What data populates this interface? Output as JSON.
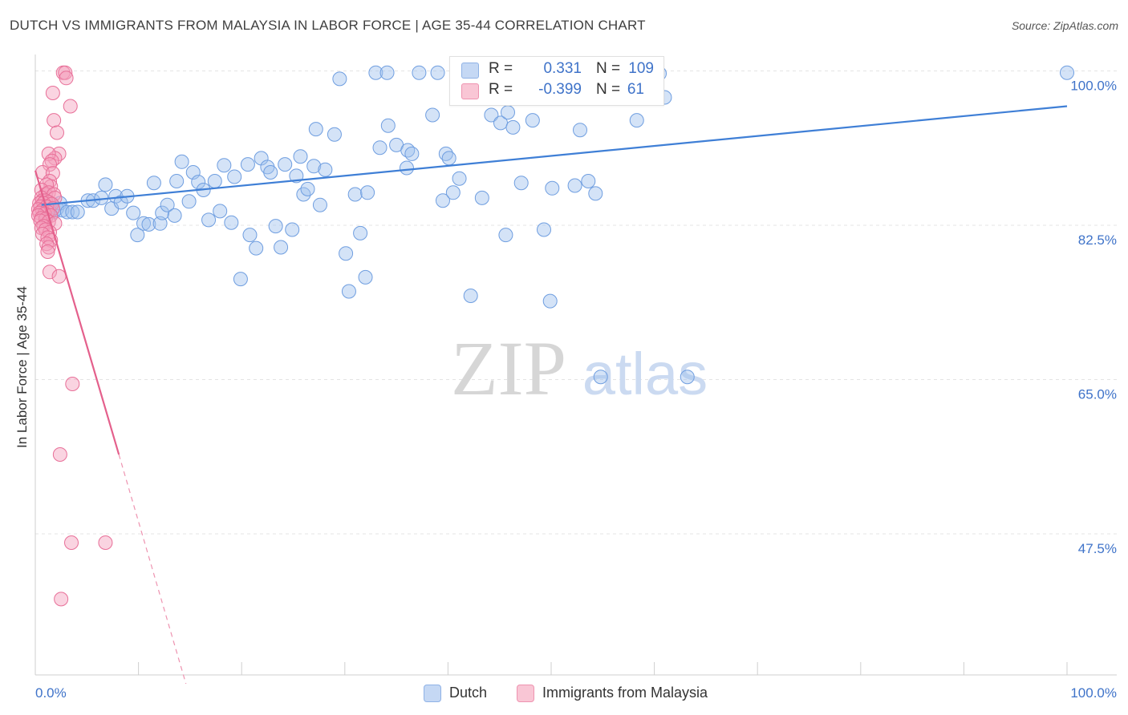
{
  "header": {
    "title": "DUTCH VS IMMIGRANTS FROM MALAYSIA IN LABOR FORCE | AGE 35-44 CORRELATION CHART",
    "source": "Source: ZipAtlas.com"
  },
  "stats": {
    "blue": {
      "r_label": "R =",
      "r_value": "0.331",
      "n_label": "N =",
      "n_value": "109"
    },
    "pink": {
      "r_label": "R =",
      "r_value": "-0.399",
      "n_label": "N =",
      "n_value": "61"
    }
  },
  "legend": {
    "blue": "Dutch",
    "pink": "Immigrants from Malaysia"
  },
  "watermark": {
    "zip": "ZIP",
    "atlas": "atlas"
  },
  "colors": {
    "blue": "#6f9ee0",
    "blue_fill": "#c5d8f4",
    "pink": "#e86f98",
    "pink_fill": "#f9c6d5",
    "value_text": "#3f73c9"
  },
  "chart_data": {
    "type": "scatter",
    "title": "DUTCH VS IMMIGRANTS FROM MALAYSIA IN LABOR FORCE | AGE 35-44 CORRELATION CHART",
    "xlabel": "",
    "ylabel": "In Labor Force | Age 35-44",
    "xlim": [
      0,
      100
    ],
    "ylim": [
      31.5,
      101.5
    ],
    "x_tick_labels": [
      "0.0%",
      "100.0%"
    ],
    "y_ticks": [
      100.0,
      82.5,
      65.0,
      47.5
    ],
    "y_tick_labels": [
      "100.0%",
      "82.5%",
      "65.0%",
      "47.5%"
    ],
    "grid": true,
    "legend_position": "bottom",
    "series": [
      {
        "name": "Dutch",
        "r": 0.331,
        "n": 109,
        "trend": {
          "x": [
            0.6,
            100
          ],
          "y": [
            84.8,
            96.0
          ]
        },
        "points": [
          [
            0.9,
            84.4
          ],
          [
            1.1,
            83.6
          ],
          [
            1.3,
            84.6
          ],
          [
            1.4,
            84.0
          ],
          [
            1.6,
            84.8
          ],
          [
            1.8,
            84.0
          ],
          [
            2.1,
            84.4
          ],
          [
            2.4,
            85.0
          ],
          [
            2.6,
            84.2
          ],
          [
            3.1,
            84.0
          ],
          [
            3.6,
            84.0
          ],
          [
            4.1,
            84.0
          ],
          [
            5.1,
            85.3
          ],
          [
            5.6,
            85.3
          ],
          [
            6.4,
            85.6
          ],
          [
            6.8,
            87.1
          ],
          [
            7.4,
            84.4
          ],
          [
            7.8,
            85.8
          ],
          [
            8.3,
            85.1
          ],
          [
            8.9,
            85.8
          ],
          [
            9.5,
            83.9
          ],
          [
            9.9,
            81.4
          ],
          [
            10.5,
            82.7
          ],
          [
            11.0,
            82.6
          ],
          [
            11.5,
            87.3
          ],
          [
            12.1,
            82.7
          ],
          [
            12.3,
            83.9
          ],
          [
            12.8,
            84.8
          ],
          [
            13.5,
            83.6
          ],
          [
            13.7,
            87.5
          ],
          [
            14.2,
            89.7
          ],
          [
            14.9,
            85.2
          ],
          [
            15.3,
            88.5
          ],
          [
            15.8,
            87.4
          ],
          [
            16.3,
            86.5
          ],
          [
            16.8,
            83.1
          ],
          [
            17.4,
            87.5
          ],
          [
            17.9,
            84.1
          ],
          [
            18.3,
            89.3
          ],
          [
            19.0,
            82.8
          ],
          [
            19.3,
            88.0
          ],
          [
            19.9,
            76.4
          ],
          [
            20.6,
            89.4
          ],
          [
            20.8,
            81.4
          ],
          [
            21.4,
            79.9
          ],
          [
            21.9,
            90.1
          ],
          [
            22.5,
            89.1
          ],
          [
            22.8,
            88.5
          ],
          [
            23.3,
            82.4
          ],
          [
            23.8,
            80.0
          ],
          [
            24.2,
            89.4
          ],
          [
            24.9,
            82.0
          ],
          [
            25.3,
            88.1
          ],
          [
            25.7,
            90.3
          ],
          [
            26.0,
            86.0
          ],
          [
            26.4,
            86.6
          ],
          [
            27.2,
            93.4
          ],
          [
            27.6,
            84.8
          ],
          [
            27.0,
            89.2
          ],
          [
            28.1,
            88.8
          ],
          [
            29.0,
            92.8
          ],
          [
            29.5,
            99.1
          ],
          [
            30.1,
            79.3
          ],
          [
            30.4,
            75.0
          ],
          [
            31.0,
            86.0
          ],
          [
            31.5,
            81.6
          ],
          [
            32.0,
            76.6
          ],
          [
            32.2,
            86.2
          ],
          [
            33.0,
            99.8
          ],
          [
            33.4,
            91.3
          ],
          [
            34.1,
            99.8
          ],
          [
            34.2,
            93.8
          ],
          [
            35.0,
            91.6
          ],
          [
            36.0,
            89.0
          ],
          [
            36.1,
            91.0
          ],
          [
            36.5,
            90.6
          ],
          [
            37.2,
            99.8
          ],
          [
            38.5,
            95.0
          ],
          [
            39.0,
            99.8
          ],
          [
            39.5,
            85.3
          ],
          [
            39.8,
            90.6
          ],
          [
            40.1,
            90.1
          ],
          [
            40.5,
            86.2
          ],
          [
            41.1,
            87.8
          ],
          [
            42.2,
            74.5
          ],
          [
            42.5,
            98.8
          ],
          [
            43.3,
            85.6
          ],
          [
            44.2,
            95.0
          ],
          [
            45.1,
            94.1
          ],
          [
            45.6,
            81.4
          ],
          [
            45.8,
            95.3
          ],
          [
            46.3,
            93.6
          ],
          [
            47.0,
            99.1
          ],
          [
            47.1,
            87.3
          ],
          [
            48.2,
            94.4
          ],
          [
            49.3,
            82.0
          ],
          [
            49.9,
            73.9
          ],
          [
            50.1,
            86.7
          ],
          [
            52.1,
            99.5
          ],
          [
            52.3,
            87.0
          ],
          [
            52.8,
            93.3
          ],
          [
            53.6,
            87.5
          ],
          [
            54.3,
            86.1
          ],
          [
            54.8,
            65.3
          ],
          [
            58.3,
            94.4
          ],
          [
            60.5,
            99.7
          ],
          [
            61.0,
            97.0
          ],
          [
            63.2,
            65.3
          ],
          [
            100.0,
            99.8
          ]
        ]
      },
      {
        "name": "Immigrants from Malaysia",
        "r": -0.399,
        "n": 61,
        "trend": {
          "x": [
            0.0,
            8.1
          ],
          "y": [
            88.7,
            56.5
          ],
          "dashed_to": [
            14.6,
            30.5
          ]
        },
        "points": [
          [
            2.7,
            99.8
          ],
          [
            2.9,
            99.8
          ],
          [
            3.0,
            99.2
          ],
          [
            1.7,
            97.5
          ],
          [
            3.4,
            96.0
          ],
          [
            1.8,
            94.4
          ],
          [
            2.1,
            93.0
          ],
          [
            2.3,
            90.6
          ],
          [
            1.9,
            90.1
          ],
          [
            1.3,
            90.6
          ],
          [
            1.6,
            89.8
          ],
          [
            1.4,
            89.4
          ],
          [
            0.7,
            88.5
          ],
          [
            1.7,
            88.4
          ],
          [
            1.4,
            87.5
          ],
          [
            1.5,
            86.9
          ],
          [
            1.1,
            87.1
          ],
          [
            0.6,
            86.5
          ],
          [
            1.0,
            86.0
          ],
          [
            1.3,
            86.2
          ],
          [
            1.8,
            86.0
          ],
          [
            0.6,
            85.6
          ],
          [
            1.9,
            85.6
          ],
          [
            0.7,
            85.3
          ],
          [
            1.0,
            85.3
          ],
          [
            1.3,
            85.1
          ],
          [
            0.4,
            85.0
          ],
          [
            0.8,
            85.0
          ],
          [
            1.6,
            84.9
          ],
          [
            0.5,
            84.6
          ],
          [
            1.1,
            84.6
          ],
          [
            1.7,
            84.4
          ],
          [
            0.3,
            84.3
          ],
          [
            0.7,
            84.2
          ],
          [
            1.2,
            84.0
          ],
          [
            0.4,
            83.9
          ],
          [
            0.9,
            83.8
          ],
          [
            1.5,
            83.6
          ],
          [
            0.3,
            83.6
          ],
          [
            0.6,
            83.3
          ],
          [
            1.0,
            83.2
          ],
          [
            0.5,
            83.0
          ],
          [
            1.3,
            82.9
          ],
          [
            1.9,
            82.7
          ],
          [
            0.8,
            82.4
          ],
          [
            0.6,
            82.2
          ],
          [
            1.0,
            82.0
          ],
          [
            1.4,
            81.7
          ],
          [
            0.7,
            81.5
          ],
          [
            1.2,
            81.1
          ],
          [
            1.5,
            80.8
          ],
          [
            1.1,
            80.4
          ],
          [
            1.3,
            80.0
          ],
          [
            1.2,
            79.5
          ],
          [
            1.4,
            77.2
          ],
          [
            2.3,
            76.7
          ],
          [
            3.6,
            64.5
          ],
          [
            2.4,
            56.5
          ],
          [
            3.5,
            46.5
          ],
          [
            6.8,
            46.5
          ],
          [
            2.5,
            40.1
          ]
        ]
      }
    ]
  }
}
